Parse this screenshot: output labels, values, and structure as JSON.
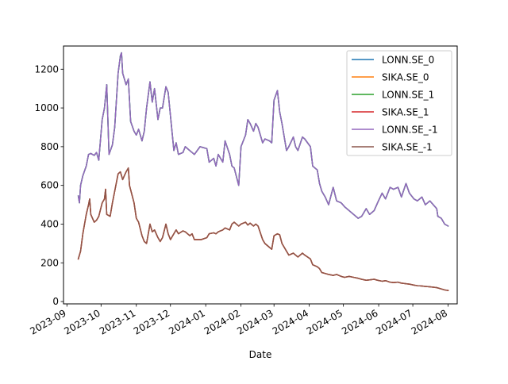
{
  "chart_data": {
    "type": "line",
    "title": "",
    "xlabel": "Date",
    "ylabel": "",
    "x_ticks": [
      "2023-09",
      "2023-10",
      "2023-11",
      "2023-12",
      "2024-01",
      "2024-02",
      "2024-03",
      "2024-04",
      "2024-05",
      "2024-06",
      "2024-07",
      "2024-08"
    ],
    "y_ticks": [
      "0",
      "200",
      "400",
      "600",
      "800",
      "1000",
      "1200"
    ],
    "xlim": [
      "2023-08-29",
      "2024-08-09"
    ],
    "ylim": [
      -12,
      1320
    ],
    "grid": false,
    "legend_position": "top-right",
    "series": [
      {
        "name": "LONN.SE_0",
        "color": "#1f77b4",
        "values": "lonn"
      },
      {
        "name": "SIKA.SE_0",
        "color": "#ff7f0e",
        "values": "sika"
      },
      {
        "name": "LONN.SE_1",
        "color": "#2ca02c",
        "values": "lonn"
      },
      {
        "name": "SIKA.SE_1",
        "color": "#d62728",
        "values": "sika"
      },
      {
        "name": "LONN.SE_-1",
        "color": "#9467bd",
        "values": "lonn"
      },
      {
        "name": "SIKA.SE_-1",
        "color": "#8c564b",
        "values": "sika"
      }
    ],
    "data": {
      "lonn": [
        [
          "2023-09-11",
          545
        ],
        [
          "2023-09-12",
          510
        ],
        [
          "2023-09-13",
          600
        ],
        [
          "2023-09-15",
          650
        ],
        [
          "2023-09-18",
          700
        ],
        [
          "2023-09-20",
          760
        ],
        [
          "2023-09-22",
          765
        ],
        [
          "2023-09-25",
          755
        ],
        [
          "2023-09-27",
          770
        ],
        [
          "2023-09-29",
          730
        ],
        [
          "2023-10-02",
          940
        ],
        [
          "2023-10-04",
          1000
        ],
        [
          "2023-10-06",
          1120
        ],
        [
          "2023-10-08",
          760
        ],
        [
          "2023-10-11",
          810
        ],
        [
          "2023-10-13",
          900
        ],
        [
          "2023-10-16",
          1180
        ],
        [
          "2023-10-18",
          1270
        ],
        [
          "2023-10-19",
          1285
        ],
        [
          "2023-10-20",
          1180
        ],
        [
          "2023-10-23",
          1120
        ],
        [
          "2023-10-25",
          1150
        ],
        [
          "2023-10-27",
          930
        ],
        [
          "2023-10-30",
          880
        ],
        [
          "2023-11-01",
          860
        ],
        [
          "2023-11-03",
          890
        ],
        [
          "2023-11-06",
          830
        ],
        [
          "2023-11-08",
          880
        ],
        [
          "2023-11-10",
          1000
        ],
        [
          "2023-11-13",
          1135
        ],
        [
          "2023-11-15",
          1030
        ],
        [
          "2023-11-17",
          1100
        ],
        [
          "2023-11-20",
          940
        ],
        [
          "2023-11-22",
          1000
        ],
        [
          "2023-11-24",
          1000
        ],
        [
          "2023-11-27",
          1110
        ],
        [
          "2023-11-29",
          1080
        ],
        [
          "2023-12-01",
          960
        ],
        [
          "2023-12-04",
          780
        ],
        [
          "2023-12-06",
          820
        ],
        [
          "2023-12-08",
          760
        ],
        [
          "2023-12-12",
          770
        ],
        [
          "2023-12-14",
          800
        ],
        [
          "2023-12-18",
          780
        ],
        [
          "2023-12-20",
          770
        ],
        [
          "2023-12-22",
          760
        ],
        [
          "2023-12-27",
          800
        ],
        [
          "2024-01-02",
          790
        ],
        [
          "2024-01-04",
          720
        ],
        [
          "2024-01-08",
          740
        ],
        [
          "2024-01-10",
          700
        ],
        [
          "2024-01-12",
          760
        ],
        [
          "2024-01-16",
          720
        ],
        [
          "2024-01-18",
          830
        ],
        [
          "2024-01-22",
          760
        ],
        [
          "2024-01-24",
          700
        ],
        [
          "2024-01-26",
          690
        ],
        [
          "2024-01-30",
          600
        ],
        [
          "2024-02-01",
          800
        ],
        [
          "2024-02-05",
          860
        ],
        [
          "2024-02-07",
          940
        ],
        [
          "2024-02-09",
          920
        ],
        [
          "2024-02-12",
          880
        ],
        [
          "2024-02-14",
          920
        ],
        [
          "2024-02-16",
          900
        ],
        [
          "2024-02-20",
          820
        ],
        [
          "2024-02-22",
          840
        ],
        [
          "2024-02-26",
          830
        ],
        [
          "2024-02-28",
          820
        ],
        [
          "2024-03-01",
          1040
        ],
        [
          "2024-03-04",
          1090
        ],
        [
          "2024-03-06",
          980
        ],
        [
          "2024-03-08",
          920
        ],
        [
          "2024-03-12",
          780
        ],
        [
          "2024-03-14",
          800
        ],
        [
          "2024-03-18",
          850
        ],
        [
          "2024-03-20",
          800
        ],
        [
          "2024-03-22",
          780
        ],
        [
          "2024-03-26",
          850
        ],
        [
          "2024-03-28",
          840
        ],
        [
          "2024-04-02",
          800
        ],
        [
          "2024-04-04",
          700
        ],
        [
          "2024-04-08",
          680
        ],
        [
          "2024-04-10",
          610
        ],
        [
          "2024-04-12",
          570
        ],
        [
          "2024-04-15",
          540
        ],
        [
          "2024-04-18",
          500
        ],
        [
          "2024-04-22",
          590
        ],
        [
          "2024-04-25",
          520
        ],
        [
          "2024-04-29",
          510
        ],
        [
          "2024-05-02",
          490
        ],
        [
          "2024-05-06",
          470
        ],
        [
          "2024-05-10",
          450
        ],
        [
          "2024-05-14",
          430
        ],
        [
          "2024-05-17",
          440
        ],
        [
          "2024-05-21",
          480
        ],
        [
          "2024-05-24",
          450
        ],
        [
          "2024-05-28",
          470
        ],
        [
          "2024-05-31",
          510
        ],
        [
          "2024-06-04",
          560
        ],
        [
          "2024-06-07",
          530
        ],
        [
          "2024-06-11",
          590
        ],
        [
          "2024-06-14",
          580
        ],
        [
          "2024-06-18",
          590
        ],
        [
          "2024-06-21",
          540
        ],
        [
          "2024-06-25",
          610
        ],
        [
          "2024-06-28",
          560
        ],
        [
          "2024-07-02",
          530
        ],
        [
          "2024-07-05",
          520
        ],
        [
          "2024-07-09",
          540
        ],
        [
          "2024-07-12",
          500
        ],
        [
          "2024-07-16",
          520
        ],
        [
          "2024-07-19",
          500
        ],
        [
          "2024-07-22",
          480
        ],
        [
          "2024-07-23",
          440
        ],
        [
          "2024-07-26",
          430
        ],
        [
          "2024-07-29",
          400
        ],
        [
          "2024-08-01",
          390
        ]
      ],
      "sika": [
        [
          "2023-09-11",
          220
        ],
        [
          "2023-09-13",
          260
        ],
        [
          "2023-09-15",
          350
        ],
        [
          "2023-09-18",
          450
        ],
        [
          "2023-09-20",
          500
        ],
        [
          "2023-09-21",
          530
        ],
        [
          "2023-09-22",
          450
        ],
        [
          "2023-09-25",
          410
        ],
        [
          "2023-09-27",
          420
        ],
        [
          "2023-09-29",
          440
        ],
        [
          "2023-10-02",
          510
        ],
        [
          "2023-10-04",
          530
        ],
        [
          "2023-10-05",
          580
        ],
        [
          "2023-10-06",
          450
        ],
        [
          "2023-10-09",
          440
        ],
        [
          "2023-10-11",
          510
        ],
        [
          "2023-10-13",
          570
        ],
        [
          "2023-10-16",
          660
        ],
        [
          "2023-10-18",
          670
        ],
        [
          "2023-10-20",
          630
        ],
        [
          "2023-10-23",
          670
        ],
        [
          "2023-10-25",
          690
        ],
        [
          "2023-10-26",
          600
        ],
        [
          "2023-10-30",
          510
        ],
        [
          "2023-11-01",
          430
        ],
        [
          "2023-11-03",
          410
        ],
        [
          "2023-11-06",
          340
        ],
        [
          "2023-11-08",
          310
        ],
        [
          "2023-11-10",
          300
        ],
        [
          "2023-11-13",
          400
        ],
        [
          "2023-11-15",
          360
        ],
        [
          "2023-11-17",
          370
        ],
        [
          "2023-11-20",
          330
        ],
        [
          "2023-11-22",
          310
        ],
        [
          "2023-11-24",
          330
        ],
        [
          "2023-11-27",
          400
        ],
        [
          "2023-11-29",
          350
        ],
        [
          "2023-12-01",
          320
        ],
        [
          "2023-12-04",
          350
        ],
        [
          "2023-12-06",
          370
        ],
        [
          "2023-12-08",
          350
        ],
        [
          "2023-12-12",
          365
        ],
        [
          "2023-12-14",
          360
        ],
        [
          "2023-12-18",
          340
        ],
        [
          "2023-12-20",
          350
        ],
        [
          "2023-12-22",
          320
        ],
        [
          "2023-12-28",
          320
        ],
        [
          "2024-01-02",
          330
        ],
        [
          "2024-01-04",
          350
        ],
        [
          "2024-01-08",
          355
        ],
        [
          "2024-01-10",
          350
        ],
        [
          "2024-01-12",
          360
        ],
        [
          "2024-01-16",
          370
        ],
        [
          "2024-01-18",
          380
        ],
        [
          "2024-01-22",
          370
        ],
        [
          "2024-01-24",
          400
        ],
        [
          "2024-01-26",
          410
        ],
        [
          "2024-01-30",
          390
        ],
        [
          "2024-02-01",
          400
        ],
        [
          "2024-02-05",
          410
        ],
        [
          "2024-02-07",
          395
        ],
        [
          "2024-02-09",
          405
        ],
        [
          "2024-02-12",
          390
        ],
        [
          "2024-02-14",
          400
        ],
        [
          "2024-02-16",
          390
        ],
        [
          "2024-02-20",
          320
        ],
        [
          "2024-02-22",
          300
        ],
        [
          "2024-02-26",
          280
        ],
        [
          "2024-02-28",
          270
        ],
        [
          "2024-03-01",
          340
        ],
        [
          "2024-03-04",
          350
        ],
        [
          "2024-03-06",
          345
        ],
        [
          "2024-03-08",
          300
        ],
        [
          "2024-03-12",
          260
        ],
        [
          "2024-03-14",
          240
        ],
        [
          "2024-03-18",
          250
        ],
        [
          "2024-03-20",
          240
        ],
        [
          "2024-03-22",
          230
        ],
        [
          "2024-03-26",
          250
        ],
        [
          "2024-03-28",
          240
        ],
        [
          "2024-04-02",
          220
        ],
        [
          "2024-04-04",
          190
        ],
        [
          "2024-04-08",
          180
        ],
        [
          "2024-04-10",
          170
        ],
        [
          "2024-04-12",
          150
        ],
        [
          "2024-04-15",
          145
        ],
        [
          "2024-04-18",
          140
        ],
        [
          "2024-04-22",
          135
        ],
        [
          "2024-04-25",
          140
        ],
        [
          "2024-04-29",
          130
        ],
        [
          "2024-05-02",
          125
        ],
        [
          "2024-05-06",
          130
        ],
        [
          "2024-05-10",
          125
        ],
        [
          "2024-05-14",
          120
        ],
        [
          "2024-05-17",
          115
        ],
        [
          "2024-05-21",
          110
        ],
        [
          "2024-05-24",
          112
        ],
        [
          "2024-05-28",
          115
        ],
        [
          "2024-05-31",
          110
        ],
        [
          "2024-06-04",
          105
        ],
        [
          "2024-06-07",
          108
        ],
        [
          "2024-06-11",
          100
        ],
        [
          "2024-06-14",
          98
        ],
        [
          "2024-06-18",
          100
        ],
        [
          "2024-06-21",
          95
        ],
        [
          "2024-06-25",
          92
        ],
        [
          "2024-06-28",
          90
        ],
        [
          "2024-07-02",
          85
        ],
        [
          "2024-07-05",
          82
        ],
        [
          "2024-07-09",
          80
        ],
        [
          "2024-07-12",
          78
        ],
        [
          "2024-07-16",
          76
        ],
        [
          "2024-07-19",
          74
        ],
        [
          "2024-07-22",
          72
        ],
        [
          "2024-07-26",
          65
        ],
        [
          "2024-07-29",
          60
        ],
        [
          "2024-08-01",
          57
        ]
      ]
    }
  }
}
